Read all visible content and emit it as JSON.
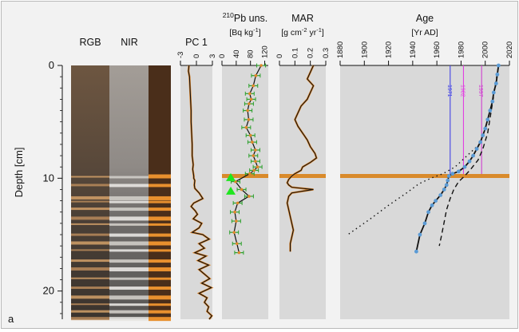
{
  "panel_label": "a",
  "colors": {
    "panel_bg": "#d9d9d9",
    "event_layer": "#d98a2b",
    "series_line": "#111111",
    "orange_trace": "#e0872a",
    "errorbar": "#2ca02c",
    "marker_green": "#1ee61e",
    "age_point": "#5b9bd5",
    "line_1971": "#4040e6",
    "line_1982": "#e23fe2",
    "line_1997": "#d03fd0"
  },
  "depth_axis": {
    "label": "Depth [cm]",
    "ticks": [
      "0",
      "10",
      "20"
    ],
    "range": [
      0,
      22.5
    ]
  },
  "core_images": {
    "rgb_label": "RGB",
    "nir_label": "NIR"
  },
  "chart_data": [
    {
      "type": "line",
      "title": "PC 1",
      "xlim": [
        -3,
        3
      ],
      "xticks": [
        -3,
        0,
        3
      ],
      "x": [
        -1.4,
        -1.5,
        -1.3,
        -1.2,
        -1.1,
        -1.0,
        -1.0,
        -0.9,
        -0.8,
        -0.8,
        -0.6,
        -0.7,
        -0.6,
        -0.5,
        -0.5,
        -0.3,
        -0.4,
        -0.3,
        0.5,
        1.2,
        -0.5,
        -1.0,
        -0.2,
        0.2,
        -0.6,
        1.0,
        0.5,
        -0.8,
        1.2,
        2.4,
        0.5,
        1.5,
        -0.3,
        1.8,
        0.3,
        2.3,
        0.5,
        1.5,
        2.5,
        1.0,
        2.8,
        0.5,
        2.0,
        1.5,
        2.3,
        2.0,
        2.9,
        2.4
      ],
      "y": [
        0,
        0.5,
        1,
        2,
        3,
        4,
        5,
        6,
        7,
        8,
        8.8,
        9.2,
        9.5,
        9.8,
        10,
        10.2,
        10.6,
        10.9,
        11.3,
        11.8,
        12.2,
        12.5,
        12.9,
        13.2,
        13.6,
        14.0,
        14.4,
        14.8,
        15.0,
        15.4,
        15.8,
        16.2,
        16.6,
        16.9,
        17.3,
        17.7,
        18.1,
        18.5,
        18.9,
        19.3,
        19.7,
        20.2,
        20.6,
        21.0,
        21.4,
        21.8,
        22.2,
        22.5
      ]
    },
    {
      "type": "scatter",
      "title": "210Pb uns.",
      "title_prefix": "210",
      "title_main": "Pb uns.",
      "unit": "[Bq kg-1]",
      "unit_main": "[Bq kg",
      "unit_sup": "-1",
      "xlim": [
        0,
        130
      ],
      "xticks": [
        0,
        40,
        80,
        120
      ],
      "x": [
        110,
        95,
        88,
        78,
        82,
        76,
        72,
        75,
        68,
        80,
        85,
        94,
        88,
        94,
        100,
        90,
        78,
        38,
        55,
        76,
        44,
        36,
        40,
        34,
        42,
        48
      ],
      "y": [
        0,
        0.9,
        1.8,
        2.5,
        3.0,
        3.4,
        4.0,
        4.8,
        5.5,
        6.2,
        6.8,
        7.5,
        8.0,
        8.5,
        9.0,
        9.3,
        9.6,
        10.3,
        11.0,
        11.6,
        12.2,
        13.0,
        13.8,
        14.8,
        15.8,
        16.6
      ],
      "markers_depth": [
        9.9,
        11.1
      ]
    },
    {
      "type": "line",
      "title": "MAR",
      "unit": "[g cm-2 yr-1]",
      "unit_parts": [
        "[g cm",
        "-2",
        " yr",
        "-1",
        "]"
      ],
      "xlim": [
        0,
        0.3
      ],
      "xticks": [
        "0",
        "0.1",
        "0.2",
        "0.3"
      ],
      "x": [
        0.22,
        0.2,
        0.18,
        0.22,
        0.2,
        0.18,
        0.14,
        0.12,
        0.1,
        0.12,
        0.15,
        0.18,
        0.2,
        0.23,
        0.24,
        0.2,
        0.15,
        0.14,
        0.1,
        0.08,
        0.06,
        0.05,
        0.06,
        0.08,
        0.22,
        0.08,
        0.06,
        0.05,
        0.06,
        0.07,
        0.08,
        0.09,
        0.08,
        0.07,
        0.07
      ],
      "y": [
        0,
        0.6,
        1.2,
        1.8,
        2.4,
        3.0,
        3.6,
        4.2,
        4.8,
        5.4,
        6.0,
        6.6,
        7.2,
        7.8,
        8.2,
        8.6,
        9.0,
        9.3,
        9.6,
        9.8,
        10.1,
        10.4,
        10.6,
        10.8,
        11.0,
        11.3,
        11.6,
        12.2,
        12.8,
        13.4,
        14.0,
        14.6,
        15.2,
        15.8,
        16.5
      ]
    },
    {
      "type": "line",
      "title": "Age",
      "unit": "[Yr AD]",
      "xlim": [
        1880,
        2020
      ],
      "xticks": [
        "1880",
        "1900",
        "1920",
        "1940",
        "1960",
        "1980",
        "2000",
        "2020"
      ],
      "series": [
        {
          "x": [
            2011,
            2010,
            2009,
            2007,
            2006,
            2004,
            2002,
            2000,
            1998,
            1996,
            1993,
            1990,
            1987,
            1983,
            1978,
            1973,
            1970,
            1969,
            1968,
            1966,
            1963,
            1959,
            1956,
            1953,
            1950,
            1946,
            1943
          ],
          "y": [
            0,
            0.8,
            1.6,
            2.4,
            3.2,
            4.0,
            4.8,
            5.6,
            6.2,
            6.8,
            7.4,
            8.0,
            8.5,
            9.0,
            9.4,
            9.6,
            9.8,
            10.2,
            10.6,
            11.0,
            11.5,
            12.0,
            12.4,
            13.0,
            14.0,
            15.0,
            16.5
          ]
        },
        {
          "style": "dashed",
          "x": [
            2011,
            2008,
            2005,
            2002,
            1998,
            1994,
            1988,
            1983,
            1978,
            1974,
            1971,
            1968,
            1964,
            1962
          ],
          "y": [
            0,
            2,
            4,
            6,
            7.4,
            8.4,
            9.2,
            9.8,
            10.3,
            11.0,
            11.8,
            12.8,
            15.0,
            16.0
          ]
        },
        {
          "style": "dotted",
          "x": [
            1995,
            1985,
            1975,
            1965,
            1955,
            1945,
            1935,
            1920,
            1905,
            1885
          ],
          "y": [
            7.0,
            8.0,
            9.0,
            9.6,
            10.0,
            10.5,
            11.3,
            12.4,
            13.6,
            15.1
          ]
        }
      ],
      "reference_lines": [
        {
          "year": 1971,
          "label": "1971",
          "color": "#4040e6"
        },
        {
          "year": 1982,
          "label": "1982",
          "color": "#e23fe2"
        },
        {
          "year": 1997,
          "label": "1997",
          "color": "#d03fd0"
        }
      ]
    }
  ]
}
